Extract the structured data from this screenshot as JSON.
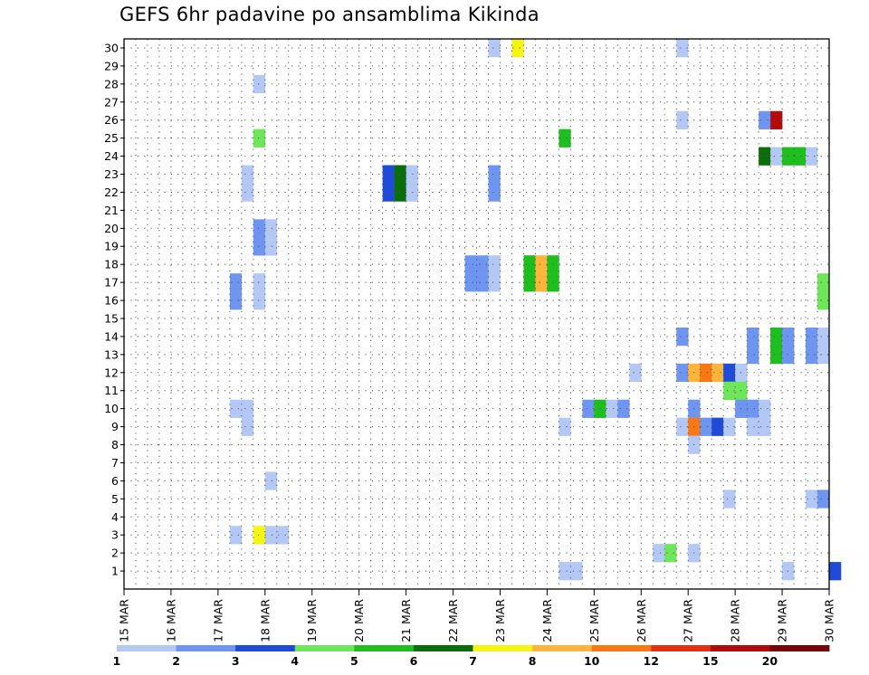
{
  "chart_data": {
    "type": "heatmap",
    "title": "GEFS 6hr padavine po ansamblima Kikinda",
    "xlabel": "",
    "ylabel": "",
    "x_ticks": [
      "15 MAR",
      "16 MAR",
      "17 MAR",
      "18 MAR",
      "19 MAR",
      "20 MAR",
      "21 MAR",
      "22 MAR",
      "23 MAR",
      "24 MAR",
      "25 MAR",
      "26 MAR",
      "27 MAR",
      "28 MAR",
      "29 MAR",
      "30 MAR"
    ],
    "x_unit": "6-hour step (4 per day) from 15 MAR",
    "y_ticks": [
      1,
      2,
      3,
      4,
      5,
      6,
      7,
      8,
      9,
      10,
      11,
      12,
      13,
      14,
      15,
      16,
      17,
      18,
      19,
      20,
      21,
      22,
      23,
      24,
      25,
      26,
      27,
      28,
      29,
      30
    ],
    "ylim": [
      0,
      30
    ],
    "grid": true,
    "legend": {
      "labels": [
        "1",
        "2",
        "3",
        "4",
        "5",
        "6",
        "7",
        "8",
        "10",
        "12",
        "15",
        "20"
      ],
      "colors": [
        "#b4c8f5",
        "#6e96f0",
        "#1e4bd7",
        "#6ee65a",
        "#1ebe1e",
        "#0a6e0a",
        "#f5f514",
        "#ffb43c",
        "#fa7814",
        "#e63214",
        "#b40a0a",
        "#780505"
      ]
    },
    "cells": [
      {
        "member": 30,
        "step": 31,
        "value": 1
      },
      {
        "member": 30,
        "step": 33,
        "value": 7
      },
      {
        "member": 30,
        "step": 47,
        "value": 1
      },
      {
        "member": 28,
        "step": 11,
        "value": 1
      },
      {
        "member": 26,
        "step": 47,
        "value": 1
      },
      {
        "member": 26,
        "step": 54,
        "value": 2
      },
      {
        "member": 26,
        "step": 55,
        "value": 15
      },
      {
        "member": 25,
        "step": 11,
        "value": 4
      },
      {
        "member": 25,
        "step": 37,
        "value": 5
      },
      {
        "member": 24,
        "step": 54,
        "value": 6
      },
      {
        "member": 24,
        "step": 55,
        "value": 1
      },
      {
        "member": 24,
        "step": 56,
        "value": 5
      },
      {
        "member": 24,
        "step": 57,
        "value": 5
      },
      {
        "member": 24,
        "step": 58,
        "value": 1
      },
      {
        "member": 23,
        "step": 10,
        "value": 1
      },
      {
        "member": 23,
        "step": 22,
        "value": 3
      },
      {
        "member": 23,
        "step": 23,
        "value": 6
      },
      {
        "member": 23,
        "step": 24,
        "value": 1
      },
      {
        "member": 23,
        "step": 31,
        "value": 2
      },
      {
        "member": 22,
        "step": 10,
        "value": 1
      },
      {
        "member": 22,
        "step": 22,
        "value": 3
      },
      {
        "member": 22,
        "step": 23,
        "value": 6
      },
      {
        "member": 22,
        "step": 24,
        "value": 1
      },
      {
        "member": 22,
        "step": 31,
        "value": 2
      },
      {
        "member": 20,
        "step": 11,
        "value": 2
      },
      {
        "member": 20,
        "step": 12,
        "value": 1
      },
      {
        "member": 19,
        "step": 11,
        "value": 2
      },
      {
        "member": 19,
        "step": 12,
        "value": 1
      },
      {
        "member": 18,
        "step": 29,
        "value": 2
      },
      {
        "member": 18,
        "step": 30,
        "value": 2
      },
      {
        "member": 18,
        "step": 31,
        "value": 1
      },
      {
        "member": 18,
        "step": 34,
        "value": 5
      },
      {
        "member": 18,
        "step": 35,
        "value": 8
      },
      {
        "member": 18,
        "step": 36,
        "value": 5
      },
      {
        "member": 17,
        "step": 9,
        "value": 2
      },
      {
        "member": 17,
        "step": 11,
        "value": 1
      },
      {
        "member": 17,
        "step": 29,
        "value": 2
      },
      {
        "member": 17,
        "step": 30,
        "value": 2
      },
      {
        "member": 17,
        "step": 31,
        "value": 1
      },
      {
        "member": 17,
        "step": 34,
        "value": 5
      },
      {
        "member": 17,
        "step": 35,
        "value": 8
      },
      {
        "member": 17,
        "step": 36,
        "value": 5
      },
      {
        "member": 17,
        "step": 59,
        "value": 4
      },
      {
        "member": 16,
        "step": 9,
        "value": 2
      },
      {
        "member": 16,
        "step": 11,
        "value": 1
      },
      {
        "member": 16,
        "step": 59,
        "value": 4
      },
      {
        "member": 14,
        "step": 47,
        "value": 2
      },
      {
        "member": 14,
        "step": 53,
        "value": 2
      },
      {
        "member": 14,
        "step": 55,
        "value": 5
      },
      {
        "member": 14,
        "step": 56,
        "value": 2
      },
      {
        "member": 14,
        "step": 58,
        "value": 2
      },
      {
        "member": 14,
        "step": 59,
        "value": 1
      },
      {
        "member": 13,
        "step": 53,
        "value": 2
      },
      {
        "member": 13,
        "step": 55,
        "value": 5
      },
      {
        "member": 13,
        "step": 56,
        "value": 2
      },
      {
        "member": 13,
        "step": 58,
        "value": 2
      },
      {
        "member": 13,
        "step": 59,
        "value": 1
      },
      {
        "member": 12,
        "step": 43,
        "value": 1
      },
      {
        "member": 12,
        "step": 47,
        "value": 2
      },
      {
        "member": 12,
        "step": 48,
        "value": 8
      },
      {
        "member": 12,
        "step": 49,
        "value": 10
      },
      {
        "member": 12,
        "step": 50,
        "value": 8
      },
      {
        "member": 12,
        "step": 51,
        "value": 3
      },
      {
        "member": 12,
        "step": 52,
        "value": 1
      },
      {
        "member": 11,
        "step": 51,
        "value": 4
      },
      {
        "member": 11,
        "step": 52,
        "value": 4
      },
      {
        "member": 10,
        "step": 9,
        "value": 1
      },
      {
        "member": 10,
        "step": 10,
        "value": 1
      },
      {
        "member": 10,
        "step": 39,
        "value": 2
      },
      {
        "member": 10,
        "step": 40,
        "value": 5
      },
      {
        "member": 10,
        "step": 41,
        "value": 1
      },
      {
        "member": 10,
        "step": 42,
        "value": 2
      },
      {
        "member": 10,
        "step": 48,
        "value": 2
      },
      {
        "member": 10,
        "step": 52,
        "value": 2
      },
      {
        "member": 10,
        "step": 53,
        "value": 2
      },
      {
        "member": 10,
        "step": 54,
        "value": 1
      },
      {
        "member": 9,
        "step": 10,
        "value": 1
      },
      {
        "member": 9,
        "step": 37,
        "value": 1
      },
      {
        "member": 9,
        "step": 47,
        "value": 1
      },
      {
        "member": 9,
        "step": 48,
        "value": 10
      },
      {
        "member": 9,
        "step": 49,
        "value": 2
      },
      {
        "member": 9,
        "step": 50,
        "value": 3
      },
      {
        "member": 9,
        "step": 51,
        "value": 1
      },
      {
        "member": 9,
        "step": 53,
        "value": 1
      },
      {
        "member": 9,
        "step": 54,
        "value": 1
      },
      {
        "member": 8,
        "step": 48,
        "value": 1
      },
      {
        "member": 6,
        "step": 12,
        "value": 1
      },
      {
        "member": 5,
        "step": 51,
        "value": 1
      },
      {
        "member": 5,
        "step": 58,
        "value": 1
      },
      {
        "member": 5,
        "step": 59,
        "value": 2
      },
      {
        "member": 3,
        "step": 9,
        "value": 1
      },
      {
        "member": 3,
        "step": 11,
        "value": 7
      },
      {
        "member": 3,
        "step": 12,
        "value": 1
      },
      {
        "member": 3,
        "step": 13,
        "value": 1
      },
      {
        "member": 2,
        "step": 45,
        "value": 1
      },
      {
        "member": 2,
        "step": 46,
        "value": 4
      },
      {
        "member": 2,
        "step": 48,
        "value": 1
      },
      {
        "member": 1,
        "step": 37,
        "value": 1
      },
      {
        "member": 1,
        "step": 38,
        "value": 1
      },
      {
        "member": 1,
        "step": 56,
        "value": 1
      },
      {
        "member": 1,
        "step": 60,
        "value": 3
      }
    ]
  }
}
